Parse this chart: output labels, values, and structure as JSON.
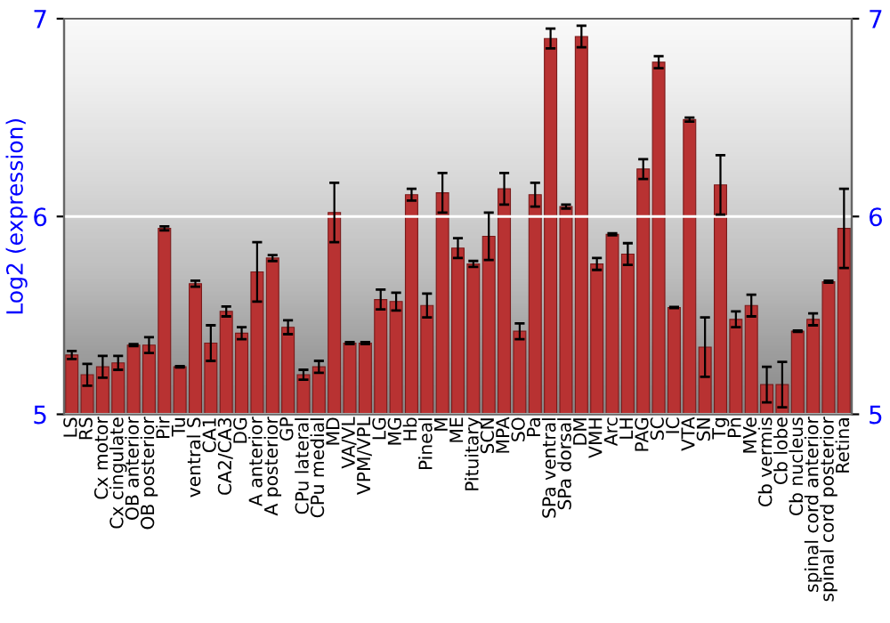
{
  "chart_data": {
    "type": "bar",
    "ylabel": "Log2 (expression)",
    "categories": [
      "LS",
      "RS",
      "Cx motor",
      "Cx cingulate",
      "OB anterior",
      "OB posterior",
      "Pir",
      "Tu",
      "ventral S",
      "CA1",
      "CA2/CA3",
      "DG",
      "A anterior",
      "A posterior",
      "GP",
      "CPu lateral",
      "CPu medial",
      "MD",
      "VA/VL",
      "VPM/VPL",
      "LG",
      "MG",
      "Hb",
      "Pineal",
      "M",
      "ME",
      "Pituitary",
      "SCN",
      "MPA",
      "SO",
      "Pa",
      "SPa ventral",
      "SPa dorsal",
      "DM",
      "VMH",
      "Arc",
      "LH",
      "PAG",
      "SC",
      "IC",
      "VTA",
      "SN",
      "Tg",
      "Pn",
      "MVe",
      "Cb vermis",
      "Cb lobe",
      "Cb nucleus",
      "spinal cord anterior",
      "spinal cord posterior",
      "Retina"
    ],
    "values": [
      5.3,
      5.2,
      5.24,
      5.26,
      5.35,
      5.35,
      5.94,
      5.24,
      5.66,
      5.36,
      5.52,
      5.41,
      5.72,
      5.79,
      5.44,
      5.2,
      5.24,
      6.02,
      5.36,
      5.36,
      5.58,
      5.57,
      6.11,
      5.55,
      6.12,
      5.84,
      5.76,
      5.9,
      6.14,
      5.42,
      6.11,
      6.9,
      6.05,
      6.91,
      5.76,
      5.91,
      5.81,
      6.24,
      6.78,
      5.54,
      6.49,
      5.34,
      6.16,
      5.48,
      5.55,
      5.15,
      5.15,
      5.42,
      5.48,
      5.67,
      5.94
    ],
    "errors": [
      0.02,
      0.055,
      0.055,
      0.035,
      0.005,
      0.04,
      0.01,
      0.003,
      0.015,
      0.09,
      0.025,
      0.03,
      0.15,
      0.015,
      0.035,
      0.025,
      0.03,
      0.15,
      0.005,
      0.005,
      0.05,
      0.045,
      0.03,
      0.06,
      0.1,
      0.05,
      0.015,
      0.12,
      0.08,
      0.04,
      0.06,
      0.05,
      0.01,
      0.055,
      0.03,
      0.005,
      0.055,
      0.05,
      0.03,
      0.003,
      0.01,
      0.15,
      0.15,
      0.04,
      0.055,
      0.09,
      0.115,
      0.003,
      0.03,
      0.005,
      0.2
    ],
    "color": "#b83232",
    "ylim": [
      5,
      7
    ],
    "yticks": [
      5,
      6,
      7
    ],
    "y2lim": [
      5,
      7
    ],
    "y2ticks": [
      5,
      6,
      7
    ],
    "grid": "y"
  }
}
